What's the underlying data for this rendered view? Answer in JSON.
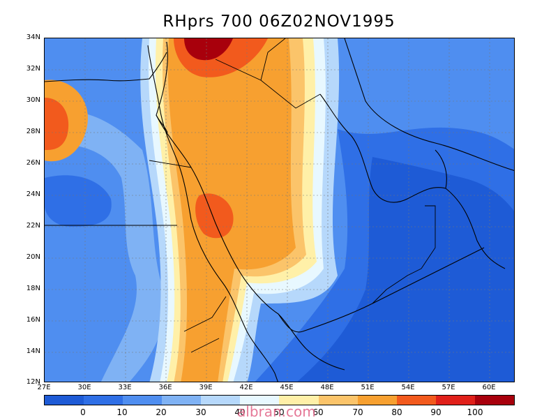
{
  "title": "RHprs 700 06Z02NOV1995",
  "lat_labels": [
    "34N",
    "32N",
    "30N",
    "28N",
    "26N",
    "24N",
    "22N",
    "20N",
    "18N",
    "16N",
    "14N",
    "12N"
  ],
  "lon_labels": [
    "27E",
    "30E",
    "33E",
    "36E",
    "39E",
    "42E",
    "45E",
    "48E",
    "51E",
    "54E",
    "57E",
    "60E"
  ],
  "colorbar": {
    "colors": [
      "#1e5bd6",
      "#2f6fe6",
      "#4f8ef0",
      "#7fb2f4",
      "#b6d8fb",
      "#e8f8ff",
      "#fff0a8",
      "#fbc46a",
      "#f7a030",
      "#f25a1d",
      "#e0201a",
      "#a8000c"
    ],
    "ticks": [
      "0",
      "10",
      "20",
      "30",
      "40",
      "50",
      "60",
      "70",
      "80",
      "90",
      "100"
    ]
  },
  "watermark": "albran.com",
  "chart_data": {
    "type": "heatmap",
    "title": "RHprs 700 06Z02NOV1995",
    "variable": "RHprs",
    "level": "700",
    "x_range": [
      "27E",
      "62E"
    ],
    "y_range": [
      "12N",
      "34N"
    ],
    "contour_levels": [
      0,
      10,
      20,
      30,
      40,
      50,
      60,
      70,
      80,
      90,
      100
    ]
  }
}
